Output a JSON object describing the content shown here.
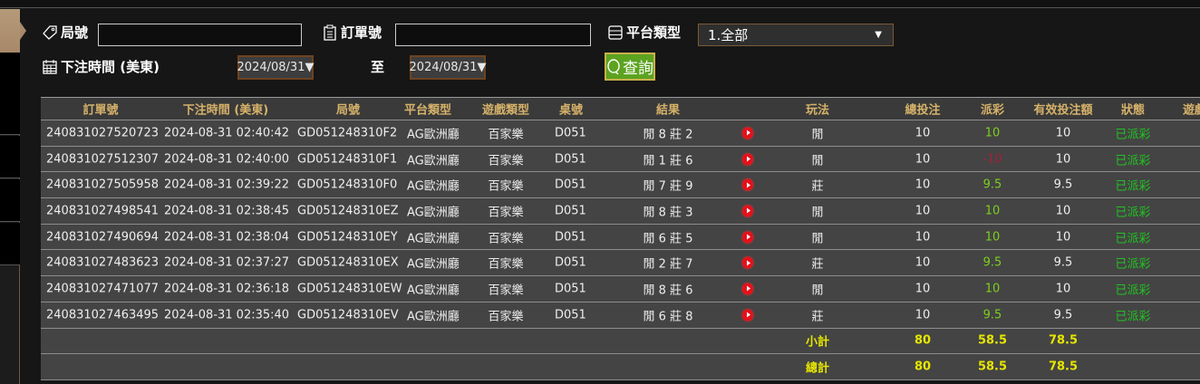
{
  "filters": {
    "round_label": "局號",
    "round_value": "",
    "order_label": "訂單號",
    "order_value": "",
    "platform_label": "平台類型",
    "platform_value": "1.全部",
    "time_label": "下注時間 (美東)",
    "date_from": "2024/08/31▼",
    "to_label": "至",
    "date_to": "2024/08/31▼",
    "query_label": "查詢"
  },
  "table": {
    "headers": [
      "訂單號",
      "下注時間 (美東)",
      "局號",
      "平台類型",
      "遊戲類型",
      "桌號",
      "結果",
      "",
      "玩法",
      "總投注",
      "派彩",
      "有效投注額",
      "狀態",
      "遊戲"
    ],
    "rows": [
      {
        "order": "240831027520723",
        "time": "2024-08-31 02:40:42",
        "round": "GD051248310F2",
        "platform": "AG歐洲廳",
        "game": "百家樂",
        "table": "D051",
        "result": "閒 8 莊 2",
        "play": "閒",
        "bet": "10",
        "payout": "10",
        "valid": "10",
        "status": "已派彩"
      },
      {
        "order": "240831027512307",
        "time": "2024-08-31 02:40:00",
        "round": "GD051248310F1",
        "platform": "AG歐洲廳",
        "game": "百家樂",
        "table": "D051",
        "result": "閒 1 莊 6",
        "play": "閒",
        "bet": "10",
        "payout": "-10",
        "valid": "10",
        "status": "已派彩"
      },
      {
        "order": "240831027505958",
        "time": "2024-08-31 02:39:22",
        "round": "GD051248310F0",
        "platform": "AG歐洲廳",
        "game": "百家樂",
        "table": "D051",
        "result": "閒 7 莊 9",
        "play": "莊",
        "bet": "10",
        "payout": "9.5",
        "valid": "9.5",
        "status": "已派彩"
      },
      {
        "order": "240831027498541",
        "time": "2024-08-31 02:38:45",
        "round": "GD051248310EZ",
        "platform": "AG歐洲廳",
        "game": "百家樂",
        "table": "D051",
        "result": "閒 8 莊 3",
        "play": "閒",
        "bet": "10",
        "payout": "10",
        "valid": "10",
        "status": "已派彩"
      },
      {
        "order": "240831027490694",
        "time": "2024-08-31 02:38:04",
        "round": "GD051248310EY",
        "platform": "AG歐洲廳",
        "game": "百家樂",
        "table": "D051",
        "result": "閒 6 莊 5",
        "play": "閒",
        "bet": "10",
        "payout": "10",
        "valid": "10",
        "status": "已派彩"
      },
      {
        "order": "240831027483623",
        "time": "2024-08-31 02:37:27",
        "round": "GD051248310EX",
        "platform": "AG歐洲廳",
        "game": "百家樂",
        "table": "D051",
        "result": "閒 2 莊 7",
        "play": "莊",
        "bet": "10",
        "payout": "9.5",
        "valid": "9.5",
        "status": "已派彩"
      },
      {
        "order": "240831027471077",
        "time": "2024-08-31 02:36:18",
        "round": "GD051248310EW",
        "platform": "AG歐洲廳",
        "game": "百家樂",
        "table": "D051",
        "result": "閒 8 莊 6",
        "play": "閒",
        "bet": "10",
        "payout": "10",
        "valid": "10",
        "status": "已派彩"
      },
      {
        "order": "240831027463495",
        "time": "2024-08-31 02:35:40",
        "round": "GD051248310EV",
        "platform": "AG歐洲廳",
        "game": "百家樂",
        "table": "D051",
        "result": "閒 6 莊 8",
        "play": "莊",
        "bet": "10",
        "payout": "9.5",
        "valid": "9.5",
        "status": "已派彩"
      }
    ],
    "subtotal": {
      "label": "小計",
      "bet": "80",
      "payout": "58.5",
      "valid": "78.5"
    },
    "total": {
      "label": "總計",
      "bet": "80",
      "payout": "58.5",
      "valid": "78.5"
    }
  },
  "colors": {
    "win": "#7ccf1e",
    "lose": "#a3213b",
    "status": "#1fc41f",
    "header": "#d6b26a",
    "sum": "#e6e600",
    "query": "#5ca320"
  }
}
